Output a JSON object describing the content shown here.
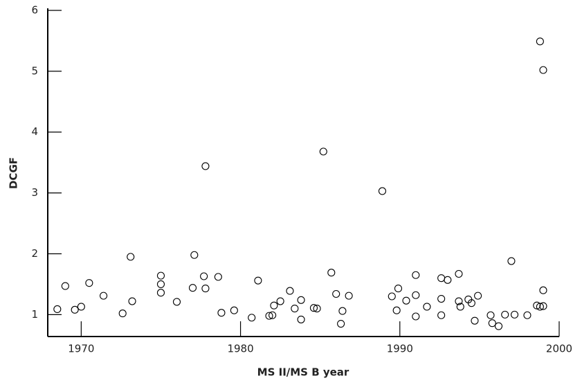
{
  "chart_data": {
    "type": "scatter",
    "x_label": "MS II/MS B year",
    "y_label": "DCGF",
    "xlim": [
      1967.9,
      2000
    ],
    "ylim": [
      0.64,
      6
    ],
    "xticks": [
      1970,
      1980,
      1990,
      2000
    ],
    "yticks": [
      1,
      2,
      3,
      4,
      5,
      6
    ],
    "color": "#000000",
    "x": [
      1968.5,
      1969.0,
      1969.6,
      1970.0,
      1970.5,
      1971.4,
      1972.6,
      1973.1,
      1973.2,
      1975.0,
      1975.0,
      1975.0,
      1976.0,
      1977.0,
      1977.1,
      1977.7,
      1977.8,
      1977.8,
      1978.6,
      1978.8,
      1979.6,
      1980.7,
      1981.1,
      1981.8,
      1982.0,
      1982.1,
      1982.5,
      1983.1,
      1983.4,
      1983.8,
      1983.8,
      1984.6,
      1984.8,
      1985.2,
      1985.7,
      1986.0,
      1986.3,
      1986.4,
      1986.8,
      1988.9,
      1989.5,
      1989.8,
      1989.9,
      1990.4,
      1991.0,
      1991.0,
      1991.0,
      1991.7,
      1992.6,
      1992.6,
      1992.6,
      1993.0,
      1993.7,
      1993.7,
      1993.8,
      1994.3,
      1994.5,
      1994.7,
      1994.9,
      1995.7,
      1995.8,
      1996.2,
      1996.6,
      1997.2,
      1997.0,
      1998.0,
      1998.6,
      1998.8,
      1998.8,
      1999.0,
      1999.0,
      1999.0
    ],
    "values": [
      1.09,
      1.47,
      1.08,
      1.13,
      1.52,
      1.31,
      1.02,
      1.95,
      1.22,
      1.64,
      1.5,
      1.36,
      1.21,
      1.44,
      1.98,
      1.63,
      1.43,
      3.44,
      1.62,
      1.03,
      1.07,
      0.95,
      1.56,
      0.98,
      0.99,
      1.15,
      1.22,
      1.39,
      1.1,
      1.24,
      0.92,
      1.11,
      1.1,
      3.68,
      1.69,
      1.34,
      0.85,
      1.06,
      1.31,
      3.03,
      1.3,
      1.07,
      1.43,
      1.23,
      1.65,
      1.32,
      0.97,
      1.13,
      1.6,
      1.26,
      0.99,
      1.57,
      1.67,
      1.22,
      1.13,
      1.25,
      1.19,
      0.9,
      1.31,
      0.99,
      0.86,
      0.81,
      1.0,
      1.0,
      1.88,
      0.99,
      1.15,
      5.49,
      1.13,
      1.14,
      5.02,
      1.4
    ]
  }
}
